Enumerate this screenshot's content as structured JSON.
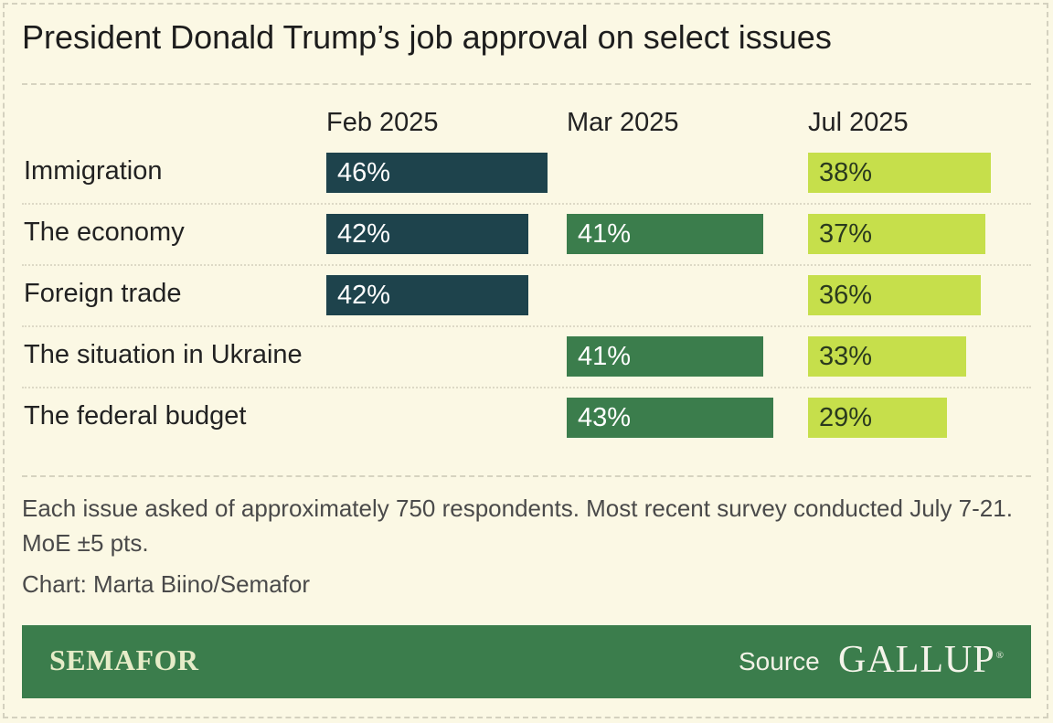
{
  "title": "President Donald Trump’s job approval on select issues",
  "colors": {
    "background": "#fbf8e4",
    "feb": "#1e434c",
    "mar": "#3b7d4c",
    "jul": "#c6df4b",
    "footer": "#3b7d4c"
  },
  "chart_data": {
    "type": "bar",
    "title": "President Donald Trump’s job approval on select issues",
    "unit": "%",
    "categories": [
      "Immigration",
      "The economy",
      "Foreign trade",
      "The situation in Ukraine",
      "The federal budget"
    ],
    "series": [
      {
        "name": "Feb 2025",
        "values": [
          46,
          42,
          42,
          null,
          null
        ],
        "labels": [
          "46%",
          "42%",
          "42%",
          null,
          null
        ]
      },
      {
        "name": "Mar 2025",
        "values": [
          null,
          41,
          null,
          41,
          43
        ],
        "labels": [
          null,
          "41%",
          null,
          "41%",
          "43%"
        ]
      },
      {
        "name": "Jul 2025",
        "values": [
          38,
          37,
          36,
          33,
          29
        ],
        "labels": [
          "38%",
          "37%",
          "36%",
          "33%",
          "29%"
        ]
      }
    ]
  },
  "note": "Each issue asked of approximately 750 respondents. Most recent survey conducted July 7-21. MoE ±5 pts.",
  "credit": "Chart: Marta Biino/Semafor",
  "footer": {
    "brand": "SEMAFOR",
    "source_label": "Source",
    "source_name": "GALLUP",
    "registered_mark": "®"
  }
}
